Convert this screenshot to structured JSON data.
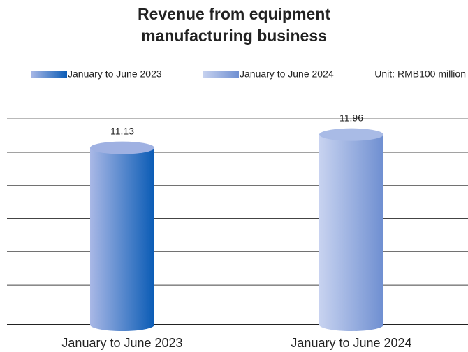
{
  "chart_data": {
    "type": "bar",
    "title": [
      "Revenue from equipment",
      "manufacturing business"
    ],
    "unit": "Unit: RMB100 million",
    "categories": [
      "January to June 2023",
      "January to June 2024"
    ],
    "series": [
      {
        "name": "January to June 2023",
        "color": "#0a5bb5",
        "values": [
          11.13,
          null
        ]
      },
      {
        "name": "January to June 2024",
        "color": "#8aa3d8",
        "values": [
          null,
          11.96
        ]
      }
    ],
    "ylim": [
      0,
      13
    ],
    "yticks": [
      2.5,
      4.6,
      6.7,
      8.75,
      10.85,
      12.95
    ],
    "grid": true
  }
}
